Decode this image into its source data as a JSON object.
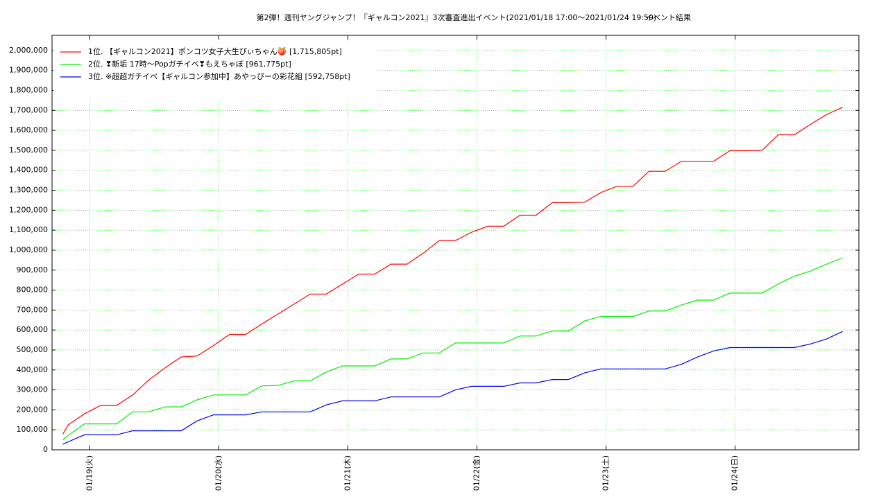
{
  "chart_data": {
    "type": "line",
    "title": "第2弾！週刊ヤングジャンプ！『ギャルコン2021』3次審査進出イベント(2021/01/18 17:00〜2021/01/24 19:59)",
    "subtitle": "イベント結果",
    "x": [
      "2021-01-18T19:00",
      "2021-01-18T20:00",
      "2021-01-18T23:00",
      "2021-01-19T02:00",
      "2021-01-19T05:00",
      "2021-01-19T08:00",
      "2021-01-19T11:00",
      "2021-01-19T14:00",
      "2021-01-19T17:00",
      "2021-01-19T20:00",
      "2021-01-19T23:00",
      "2021-01-20T02:00",
      "2021-01-20T05:00",
      "2021-01-20T08:00",
      "2021-01-20T11:00",
      "2021-01-20T14:00",
      "2021-01-20T17:00",
      "2021-01-20T20:00",
      "2021-01-20T23:00",
      "2021-01-21T02:00",
      "2021-01-21T05:00",
      "2021-01-21T08:00",
      "2021-01-21T11:00",
      "2021-01-21T14:00",
      "2021-01-21T17:00",
      "2021-01-21T20:00",
      "2021-01-21T23:00",
      "2021-01-22T02:00",
      "2021-01-22T05:00",
      "2021-01-22T08:00",
      "2021-01-22T11:00",
      "2021-01-22T14:00",
      "2021-01-22T17:00",
      "2021-01-22T20:00",
      "2021-01-22T23:00",
      "2021-01-23T02:00",
      "2021-01-23T05:00",
      "2021-01-23T08:00",
      "2021-01-23T11:00",
      "2021-01-23T14:00",
      "2021-01-23T17:00",
      "2021-01-23T20:00",
      "2021-01-23T23:00",
      "2021-01-24T02:00",
      "2021-01-24T05:00",
      "2021-01-24T08:00",
      "2021-01-24T11:00",
      "2021-01-24T14:00",
      "2021-01-24T17:00",
      "2021-01-24T19:59"
    ],
    "series": [
      {
        "name": "1位. 【ギャルコン2021】ポンコツ女子大生ぴぃちゃん🍑 [1,715,805pt]",
        "color": "#ff0000",
        "values": [
          78000,
          125000,
          180000,
          222000,
          222000,
          275000,
          350000,
          410000,
          465000,
          470000,
          522000,
          578000,
          578000,
          630000,
          680000,
          730000,
          780000,
          780000,
          830000,
          880000,
          880000,
          930000,
          930000,
          985000,
          1048000,
          1048000,
          1090000,
          1120000,
          1120000,
          1175000,
          1175000,
          1238000,
          1238000,
          1240000,
          1288000,
          1320000,
          1320000,
          1395000,
          1395000,
          1445000,
          1445000,
          1445000,
          1498000,
          1498000,
          1500000,
          1578000,
          1578000,
          1630000,
          1680000,
          1715805
        ]
      },
      {
        "name": "2位. ❣新垢 17時〜Popガチイベ❣もえちゃぼ [961,775pt]",
        "color": "#00ee00",
        "values": [
          50000,
          72000,
          130000,
          130000,
          130000,
          190000,
          190000,
          215000,
          215000,
          250000,
          275000,
          275000,
          275000,
          320000,
          322000,
          345000,
          345000,
          390000,
          420000,
          420000,
          420000,
          455000,
          455000,
          485000,
          485000,
          535000,
          535000,
          535000,
          535000,
          570000,
          570000,
          595000,
          595000,
          645000,
          668000,
          668000,
          668000,
          695000,
          695000,
          725000,
          750000,
          750000,
          785000,
          785000,
          785000,
          830000,
          870000,
          895000,
          930000,
          961775
        ]
      },
      {
        "name": "3位. ※超超ガチイベ【ギャルコン参加中】あやっぴーの彩花組 [592,758pt]",
        "color": "#0000ee",
        "values": [
          28000,
          40000,
          75000,
          75000,
          75000,
          95000,
          95000,
          95000,
          95000,
          145000,
          175000,
          175000,
          175000,
          190000,
          190000,
          190000,
          190000,
          225000,
          245000,
          245000,
          245000,
          265000,
          265000,
          265000,
          265000,
          300000,
          318000,
          318000,
          318000,
          335000,
          335000,
          352000,
          352000,
          385000,
          405000,
          405000,
          405000,
          405000,
          405000,
          428000,
          465000,
          495000,
          512000,
          512000,
          512000,
          512000,
          512000,
          530000,
          555000,
          592758
        ]
      }
    ],
    "xlim": [
      "2021-01-18T17:00",
      "2021-01-24T23:00"
    ],
    "xticks": [
      {
        "value": "2021-01-19T00:00",
        "label": "01/19(火)"
      },
      {
        "value": "2021-01-20T00:00",
        "label": "01/20(水)"
      },
      {
        "value": "2021-01-21T00:00",
        "label": "01/21(木)"
      },
      {
        "value": "2021-01-22T00:00",
        "label": "01/22(金)"
      },
      {
        "value": "2021-01-23T00:00",
        "label": "01/23(土)"
      },
      {
        "value": "2021-01-24T00:00",
        "label": "01/24(日)"
      }
    ],
    "ylim": [
      0,
      2076000
    ],
    "yticks": [
      0,
      {
        "value": 100000,
        "label": "100,000"
      },
      {
        "value": 200000,
        "label": "200,000"
      },
      {
        "value": 300000,
        "label": "300,000"
      },
      {
        "value": 400000,
        "label": "400,000"
      },
      {
        "value": 500000,
        "label": "500,000"
      },
      {
        "value": 600000,
        "label": "600,000"
      },
      {
        "value": 700000,
        "label": "700,000"
      },
      {
        "value": 800000,
        "label": "800,000"
      },
      {
        "value": 900000,
        "label": "900,000"
      },
      {
        "value": 1000000,
        "label": "1,000,000"
      },
      {
        "value": 1100000,
        "label": "1,100,000"
      },
      {
        "value": 1200000,
        "label": "1,200,000"
      },
      {
        "value": 1300000,
        "label": "1,300,000"
      },
      {
        "value": 1400000,
        "label": "1,400,000"
      },
      {
        "value": 1500000,
        "label": "1,500,000"
      },
      {
        "value": 1600000,
        "label": "1,600,000"
      },
      {
        "value": 1700000,
        "label": "1,700,000"
      },
      {
        "value": 1800000,
        "label": "1,800,000"
      },
      {
        "value": 1900000,
        "label": "1,900,000"
      },
      {
        "value": 2000000,
        "label": "2,000,000"
      }
    ],
    "grid": true,
    "grid_color": "#00dd00",
    "legend": "upper-left"
  }
}
